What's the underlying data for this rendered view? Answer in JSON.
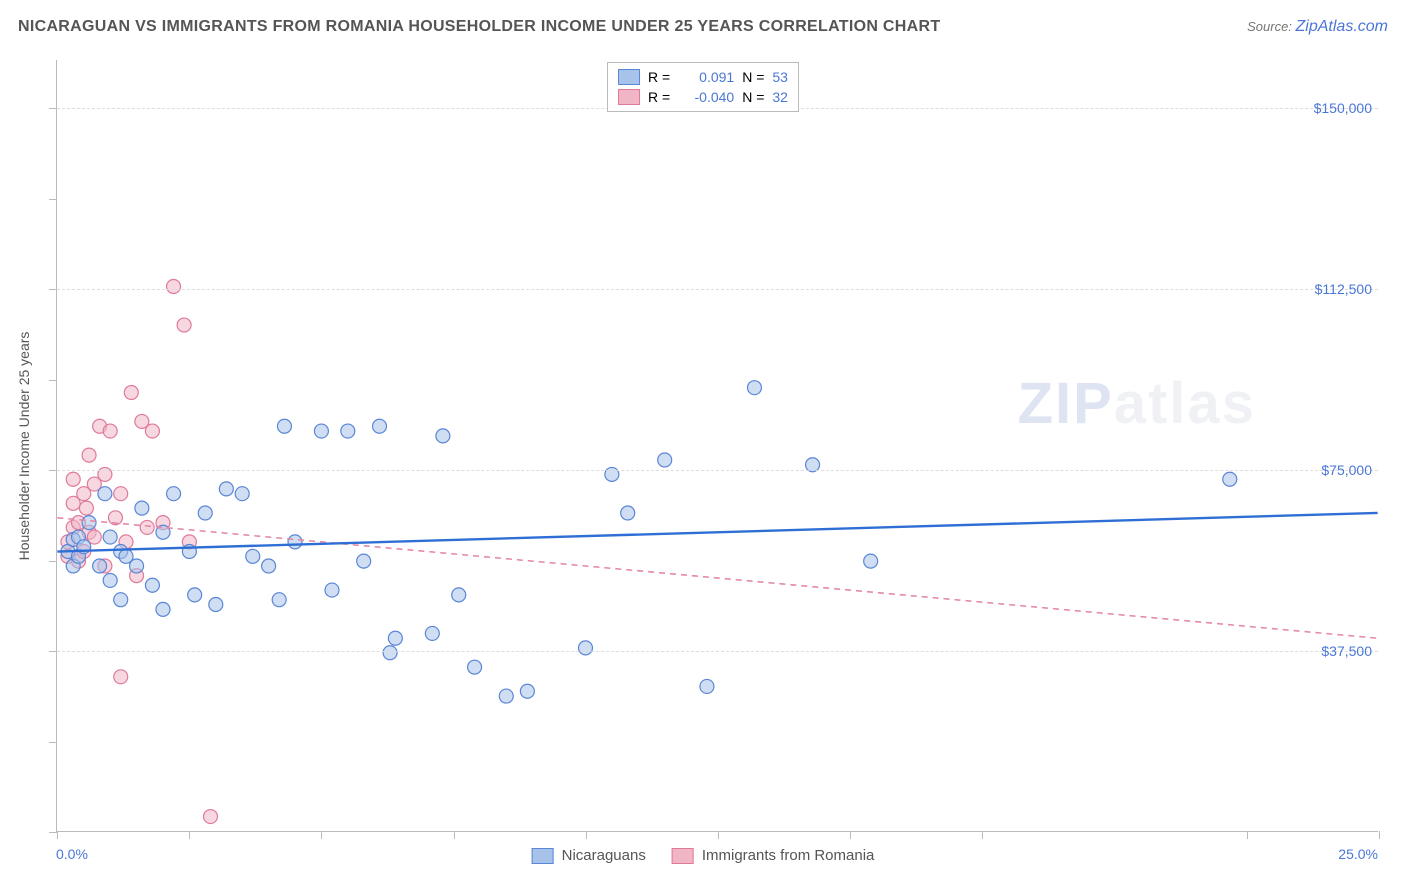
{
  "title": "NICARAGUAN VS IMMIGRANTS FROM ROMANIA HOUSEHOLDER INCOME UNDER 25 YEARS CORRELATION CHART",
  "source_label": "Source: ",
  "source_name": "ZipAtlas.com",
  "watermark_a": "ZIP",
  "watermark_b": "atlas",
  "chart": {
    "type": "scatter",
    "background_color": "#ffffff",
    "grid_color": "#dddddd",
    "axis_color": "#bbbbbb",
    "text_color": "#555555",
    "value_color": "#4a76d6",
    "y_axis_label": "Householder Income Under 25 years",
    "label_fontsize": 14,
    "title_fontsize": 16,
    "xlim": [
      0,
      25
    ],
    "ylim": [
      0,
      160000
    ],
    "y_gridlines": [
      37500,
      75000,
      112500,
      150000
    ],
    "y_gridline_labels": [
      "$37,500",
      "$75,000",
      "$112,500",
      "$150,000"
    ],
    "x_min_label": "0.0%",
    "x_max_label": "25.0%",
    "x_ticks": [
      0,
      2.5,
      5,
      7.5,
      10,
      12.5,
      15,
      17.5,
      22.5,
      25
    ],
    "y_ticks": [
      0,
      18750,
      37500,
      56250,
      75000,
      93750,
      112500,
      131250,
      150000
    ],
    "series": [
      {
        "name": "Nicaraguans",
        "fill": "#a8c3ea",
        "fill_opacity": 0.55,
        "stroke": "#5a86d6",
        "marker_radius": 7,
        "R_value": "0.091",
        "N_value": "53",
        "trend": {
          "y_at_xmin": 58000,
          "y_at_xmax": 66000,
          "color": "#2f6fd5",
          "width": 2.4,
          "dash": "none"
        },
        "points": [
          [
            0.2,
            58000
          ],
          [
            0.3,
            60500
          ],
          [
            0.3,
            55000
          ],
          [
            0.4,
            57000
          ],
          [
            0.4,
            61000
          ],
          [
            0.5,
            59000
          ],
          [
            0.6,
            64000
          ],
          [
            0.8,
            55000
          ],
          [
            0.9,
            70000
          ],
          [
            1.0,
            52000
          ],
          [
            1.0,
            61000
          ],
          [
            1.2,
            58000
          ],
          [
            1.2,
            48000
          ],
          [
            1.3,
            57000
          ],
          [
            1.5,
            55000
          ],
          [
            1.6,
            67000
          ],
          [
            1.8,
            51000
          ],
          [
            2.0,
            62000
          ],
          [
            2.0,
            46000
          ],
          [
            2.2,
            70000
          ],
          [
            2.5,
            58000
          ],
          [
            2.6,
            49000
          ],
          [
            2.8,
            66000
          ],
          [
            3.0,
            47000
          ],
          [
            3.2,
            71000
          ],
          [
            3.5,
            70000
          ],
          [
            3.7,
            57000
          ],
          [
            4.0,
            55000
          ],
          [
            4.2,
            48000
          ],
          [
            4.3,
            84000
          ],
          [
            4.5,
            60000
          ],
          [
            5.0,
            83000
          ],
          [
            5.2,
            50000
          ],
          [
            5.5,
            83000
          ],
          [
            5.8,
            56000
          ],
          [
            6.1,
            84000
          ],
          [
            6.3,
            37000
          ],
          [
            6.4,
            40000
          ],
          [
            7.1,
            41000
          ],
          [
            7.3,
            82000
          ],
          [
            7.6,
            49000
          ],
          [
            7.9,
            34000
          ],
          [
            8.5,
            28000
          ],
          [
            8.9,
            29000
          ],
          [
            10.0,
            38000
          ],
          [
            10.5,
            74000
          ],
          [
            10.8,
            66000
          ],
          [
            11.5,
            77000
          ],
          [
            12.3,
            30000
          ],
          [
            13.2,
            92000
          ],
          [
            14.3,
            76000
          ],
          [
            15.4,
            56000
          ],
          [
            22.2,
            73000
          ]
        ]
      },
      {
        "name": "Immigrants from Romania",
        "fill": "#f1b6c6",
        "fill_opacity": 0.55,
        "stroke": "#e07a9a",
        "marker_radius": 7,
        "R_value": "-0.040",
        "N_value": "32",
        "trend": {
          "y_at_xmin": 65000,
          "y_at_xmax": 40000,
          "color": "#e58aa6",
          "width": 1.6,
          "dash": "6,5"
        },
        "points": [
          [
            0.2,
            60000
          ],
          [
            0.2,
            57000
          ],
          [
            0.3,
            63000
          ],
          [
            0.3,
            68000
          ],
          [
            0.3,
            73000
          ],
          [
            0.4,
            56000
          ],
          [
            0.4,
            64000
          ],
          [
            0.5,
            70000
          ],
          [
            0.5,
            58000
          ],
          [
            0.55,
            67000
          ],
          [
            0.6,
            62000
          ],
          [
            0.6,
            78000
          ],
          [
            0.7,
            61000
          ],
          [
            0.7,
            72000
          ],
          [
            0.8,
            84000
          ],
          [
            0.9,
            55000
          ],
          [
            0.9,
            74000
          ],
          [
            1.0,
            83000
          ],
          [
            1.1,
            65000
          ],
          [
            1.2,
            70000
          ],
          [
            1.3,
            60000
          ],
          [
            1.4,
            91000
          ],
          [
            1.5,
            53000
          ],
          [
            1.6,
            85000
          ],
          [
            1.7,
            63000
          ],
          [
            1.8,
            83000
          ],
          [
            2.0,
            64000
          ],
          [
            2.2,
            113000
          ],
          [
            2.4,
            105000
          ],
          [
            2.5,
            60000
          ],
          [
            2.9,
            3000
          ],
          [
            1.2,
            32000
          ]
        ]
      }
    ],
    "legend_top": {
      "R_label": "R =",
      "N_label": "N ="
    },
    "legend_bottom": {
      "items": [
        "Nicaraguans",
        "Immigrants from Romania"
      ]
    }
  }
}
